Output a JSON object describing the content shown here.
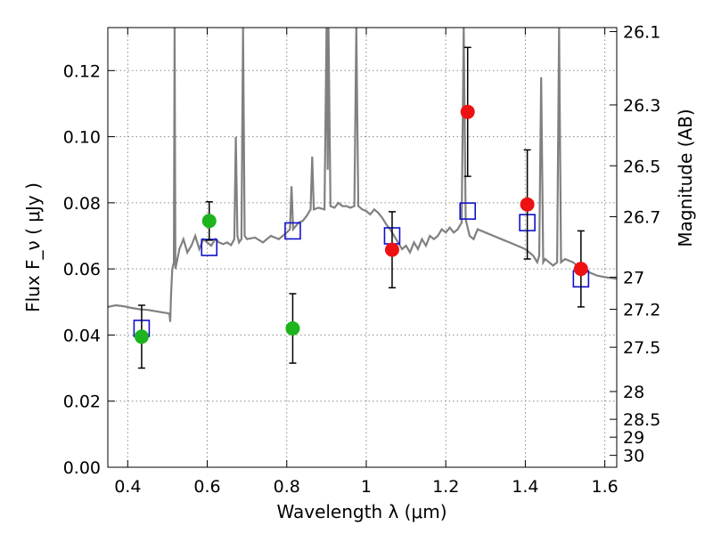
{
  "chart_data": {
    "type": "scatter",
    "xlabel": "Wavelength  λ (μm)",
    "ylabel_left": "Flux  F_ν  ( μJy )",
    "ylabel_right": "Magnitude (AB)",
    "xlim": [
      0.35,
      1.63
    ],
    "ylim": [
      0.0,
      0.133
    ],
    "grid": true,
    "x_ticks": [
      0.4,
      0.6,
      0.8,
      1.0,
      1.2,
      1.4,
      1.6
    ],
    "x_tick_labels": [
      "0.4",
      "0.6",
      "0.8",
      "1",
      "1.2",
      "1.4",
      "1.6"
    ],
    "y_ticks": [
      0.0,
      0.02,
      0.04,
      0.06,
      0.08,
      0.1,
      0.12
    ],
    "y_tick_labels": [
      "0.00",
      "0.02",
      "0.04",
      "0.06",
      "0.08",
      "0.10",
      "0.12"
    ],
    "right_ticks": [
      {
        "flux": 0.1318,
        "label": "26.1"
      },
      {
        "flux": 0.1096,
        "label": "26.3"
      },
      {
        "flux": 0.0912,
        "label": "26.5"
      },
      {
        "flux": 0.0758,
        "label": "26.7"
      },
      {
        "flux": 0.0575,
        "label": "27"
      },
      {
        "flux": 0.0478,
        "label": "27.2"
      },
      {
        "flux": 0.0363,
        "label": "27.5"
      },
      {
        "flux": 0.0229,
        "label": "28"
      },
      {
        "flux": 0.0145,
        "label": "28.5"
      },
      {
        "flux": 0.0091,
        "label": "29"
      },
      {
        "flux": 0.0036,
        "label": "30"
      }
    ],
    "colors": {
      "green": "#1db41d",
      "red": "#ee1111",
      "blue": "#1010cc",
      "spectrum": "#808080",
      "grid": "#888888"
    },
    "observed_points": [
      {
        "x": 0.435,
        "y": 0.0395,
        "err": 0.0095,
        "color": "green"
      },
      {
        "x": 0.605,
        "y": 0.0745,
        "err": 0.0058,
        "color": "green"
      },
      {
        "x": 0.815,
        "y": 0.042,
        "err": 0.0105,
        "color": "green"
      },
      {
        "x": 1.065,
        "y": 0.0658,
        "err": 0.0115,
        "color": "red"
      },
      {
        "x": 1.255,
        "y": 0.1075,
        "err": 0.0195,
        "color": "red"
      },
      {
        "x": 1.405,
        "y": 0.0795,
        "err": 0.0165,
        "color": "red"
      },
      {
        "x": 1.54,
        "y": 0.06,
        "err": 0.0115,
        "color": "red"
      }
    ],
    "model_points": [
      {
        "x": 0.435,
        "y": 0.042
      },
      {
        "x": 0.605,
        "y": 0.0665
      },
      {
        "x": 0.815,
        "y": 0.0715
      },
      {
        "x": 1.065,
        "y": 0.07
      },
      {
        "x": 1.255,
        "y": 0.0775
      },
      {
        "x": 1.405,
        "y": 0.074
      },
      {
        "x": 1.54,
        "y": 0.057
      }
    ],
    "spectrum": [
      [
        0.35,
        0.0485
      ],
      [
        0.37,
        0.049
      ],
      [
        0.39,
        0.0487
      ],
      [
        0.41,
        0.0482
      ],
      [
        0.43,
        0.0478
      ],
      [
        0.45,
        0.0476
      ],
      [
        0.47,
        0.0472
      ],
      [
        0.49,
        0.0468
      ],
      [
        0.505,
        0.0465
      ],
      [
        0.507,
        0.044
      ],
      [
        0.509,
        0.052
      ],
      [
        0.512,
        0.06
      ],
      [
        0.516,
        0.062
      ],
      [
        0.518,
        0.133
      ],
      [
        0.52,
        0.06
      ],
      [
        0.53,
        0.066
      ],
      [
        0.54,
        0.069
      ],
      [
        0.55,
        0.065
      ],
      [
        0.56,
        0.067
      ],
      [
        0.57,
        0.07
      ],
      [
        0.58,
        0.066
      ],
      [
        0.59,
        0.069
      ],
      [
        0.6,
        0.068
      ],
      [
        0.61,
        0.067
      ],
      [
        0.62,
        0.069
      ],
      [
        0.63,
        0.068
      ],
      [
        0.64,
        0.0675
      ],
      [
        0.65,
        0.068
      ],
      [
        0.66,
        0.0672
      ],
      [
        0.668,
        0.069
      ],
      [
        0.672,
        0.1
      ],
      [
        0.676,
        0.07
      ],
      [
        0.68,
        0.068
      ],
      [
        0.686,
        0.069
      ],
      [
        0.69,
        0.133
      ],
      [
        0.694,
        0.07
      ],
      [
        0.7,
        0.069
      ],
      [
        0.72,
        0.0695
      ],
      [
        0.74,
        0.068
      ],
      [
        0.76,
        0.07
      ],
      [
        0.78,
        0.069
      ],
      [
        0.8,
        0.071
      ],
      [
        0.808,
        0.072
      ],
      [
        0.812,
        0.085
      ],
      [
        0.816,
        0.072
      ],
      [
        0.83,
        0.074
      ],
      [
        0.84,
        0.0745
      ],
      [
        0.85,
        0.076
      ],
      [
        0.86,
        0.078
      ],
      [
        0.864,
        0.094
      ],
      [
        0.868,
        0.078
      ],
      [
        0.88,
        0.0785
      ],
      [
        0.895,
        0.078
      ],
      [
        0.9,
        0.133
      ],
      [
        0.903,
        0.09
      ],
      [
        0.905,
        0.133
      ],
      [
        0.91,
        0.079
      ],
      [
        0.92,
        0.0785
      ],
      [
        0.93,
        0.08
      ],
      [
        0.94,
        0.079
      ],
      [
        0.95,
        0.079
      ],
      [
        0.96,
        0.0785
      ],
      [
        0.97,
        0.079
      ],
      [
        0.975,
        0.133
      ],
      [
        0.98,
        0.079
      ],
      [
        0.99,
        0.078
      ],
      [
        1.0,
        0.0775
      ],
      [
        1.01,
        0.0765
      ],
      [
        1.02,
        0.078
      ],
      [
        1.03,
        0.077
      ],
      [
        1.04,
        0.0755
      ],
      [
        1.05,
        0.0735
      ],
      [
        1.06,
        0.072
      ],
      [
        1.07,
        0.07
      ],
      [
        1.08,
        0.068
      ],
      [
        1.09,
        0.066
      ],
      [
        1.1,
        0.067
      ],
      [
        1.11,
        0.065
      ],
      [
        1.12,
        0.068
      ],
      [
        1.13,
        0.066
      ],
      [
        1.14,
        0.069
      ],
      [
        1.15,
        0.067
      ],
      [
        1.16,
        0.07
      ],
      [
        1.17,
        0.069
      ],
      [
        1.18,
        0.07
      ],
      [
        1.19,
        0.072
      ],
      [
        1.2,
        0.071
      ],
      [
        1.21,
        0.0725
      ],
      [
        1.22,
        0.071
      ],
      [
        1.23,
        0.072
      ],
      [
        1.24,
        0.074
      ],
      [
        1.245,
        0.133
      ],
      [
        1.25,
        0.075
      ],
      [
        1.26,
        0.07
      ],
      [
        1.27,
        0.069
      ],
      [
        1.28,
        0.072
      ],
      [
        1.3,
        0.071
      ],
      [
        1.32,
        0.07
      ],
      [
        1.34,
        0.069
      ],
      [
        1.36,
        0.068
      ],
      [
        1.38,
        0.067
      ],
      [
        1.4,
        0.066
      ],
      [
        1.41,
        0.065
      ],
      [
        1.42,
        0.064
      ],
      [
        1.43,
        0.062
      ],
      [
        1.435,
        0.064
      ],
      [
        1.44,
        0.118
      ],
      [
        1.445,
        0.062
      ],
      [
        1.45,
        0.063
      ],
      [
        1.46,
        0.062
      ],
      [
        1.47,
        0.061
      ],
      [
        1.48,
        0.062
      ],
      [
        1.485,
        0.133
      ],
      [
        1.49,
        0.062
      ],
      [
        1.5,
        0.063
      ],
      [
        1.52,
        0.062
      ],
      [
        1.54,
        0.06
      ],
      [
        1.56,
        0.059
      ],
      [
        1.58,
        0.058
      ],
      [
        1.6,
        0.0575
      ],
      [
        1.63,
        0.057
      ]
    ]
  }
}
